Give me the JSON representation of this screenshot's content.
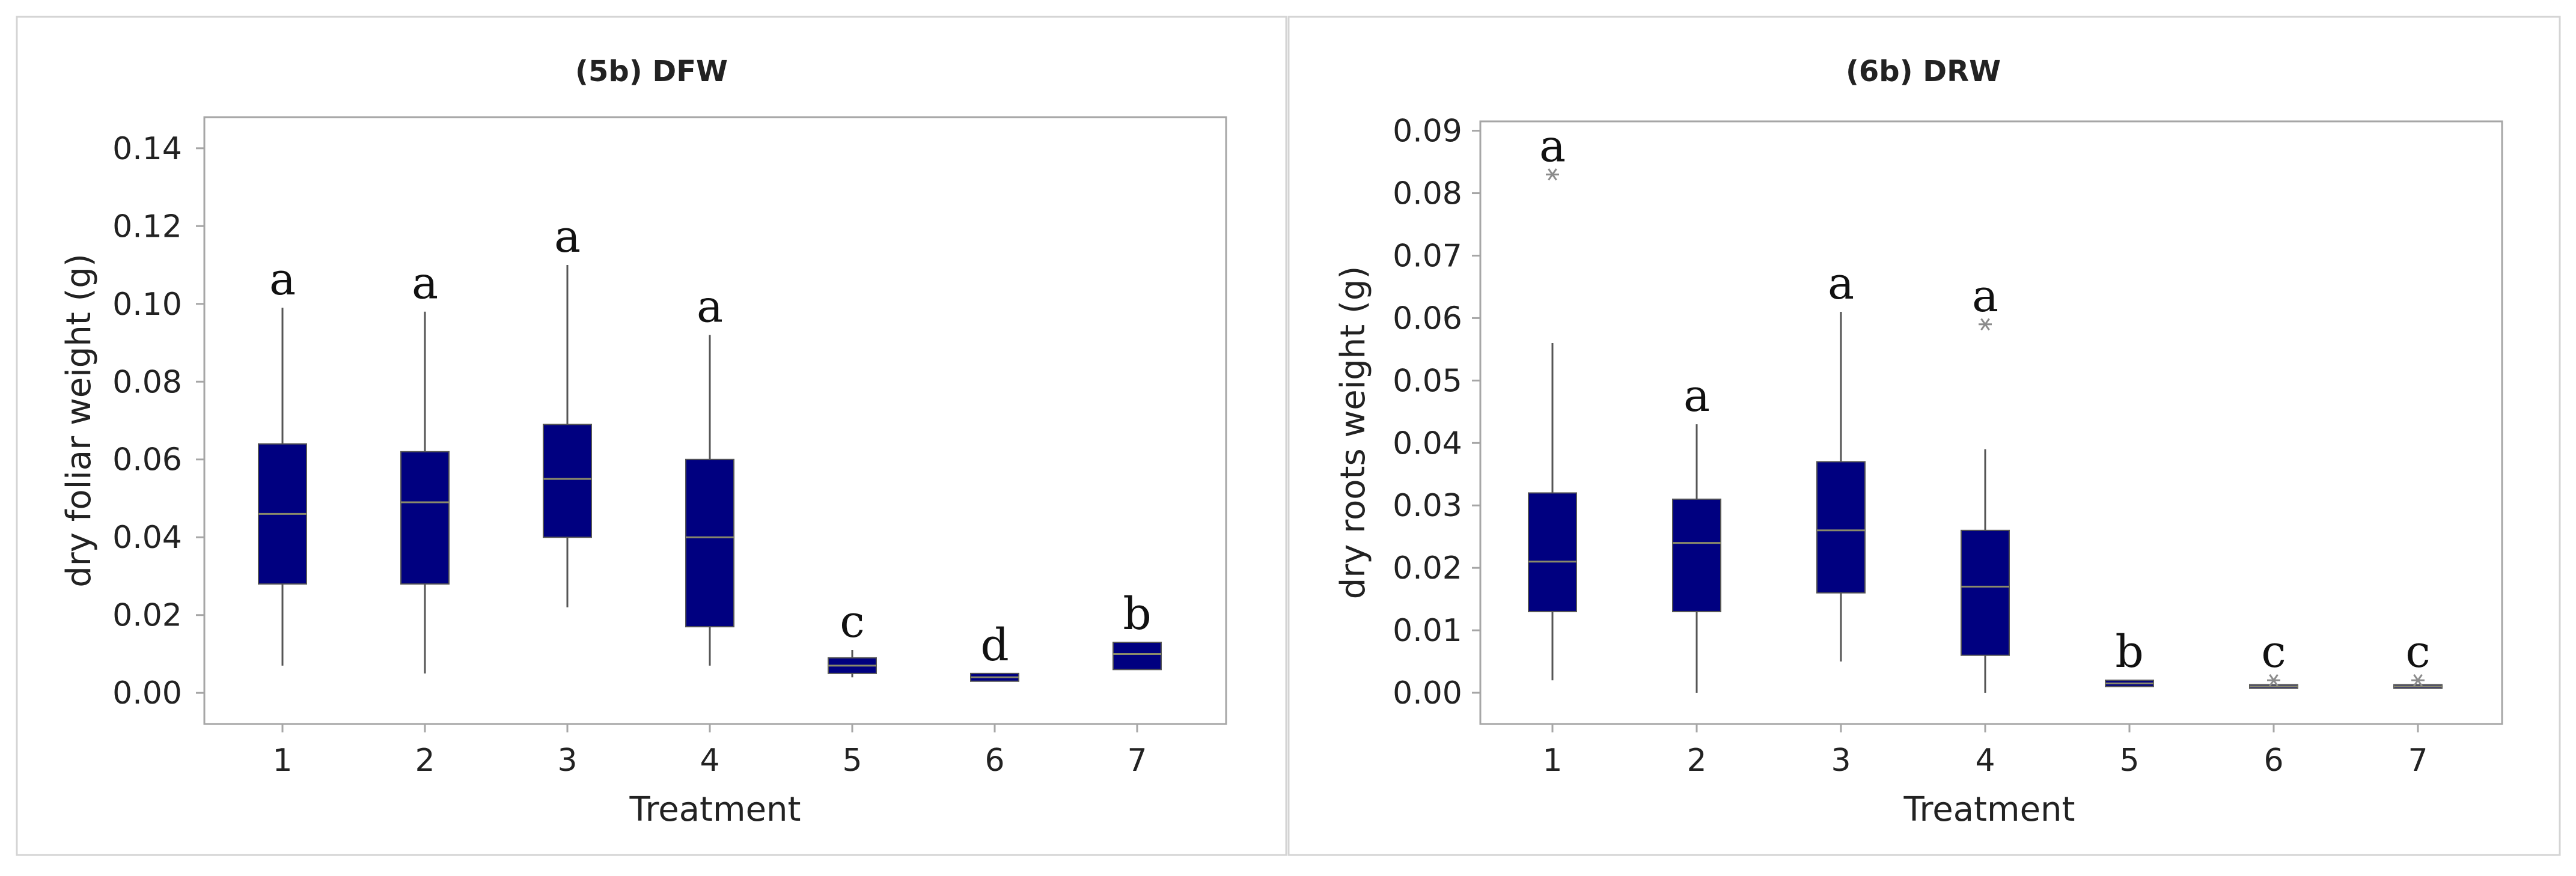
{
  "colors": {
    "box_fill": "#000080",
    "median": "#8a8a6a",
    "whisker": "#555555",
    "outlier": "#8c8c8c",
    "frame": "#a6a6a6",
    "panel_border": "#d4d4d4"
  },
  "chart_data": [
    {
      "type": "boxplot",
      "title": "(5b) DFW",
      "xlabel": "Treatment",
      "ylabel": "dry foliar weight (g)",
      "categories": [
        "1",
        "2",
        "3",
        "4",
        "5",
        "6",
        "7"
      ],
      "ylim": [
        -0.008,
        0.148
      ],
      "yticks": [
        0,
        0.02,
        0.04,
        0.06,
        0.08,
        0.1,
        0.12,
        0.14
      ],
      "yticklabels": [
        "0.00",
        "0.02",
        "0.04",
        "0.06",
        "0.08",
        "0.10",
        "0.12",
        "0.14"
      ],
      "grid": false,
      "boxes": [
        {
          "category": "1",
          "min": 0.007,
          "q1": 0.028,
          "median": 0.046,
          "q3": 0.064,
          "max": 0.099,
          "outliers": [],
          "letter": "a"
        },
        {
          "category": "2",
          "min": 0.005,
          "q1": 0.028,
          "median": 0.049,
          "q3": 0.062,
          "max": 0.098,
          "outliers": [],
          "letter": "a"
        },
        {
          "category": "3",
          "min": 0.022,
          "q1": 0.04,
          "median": 0.055,
          "q3": 0.069,
          "max": 0.11,
          "outliers": [],
          "letter": "a"
        },
        {
          "category": "4",
          "min": 0.007,
          "q1": 0.017,
          "median": 0.04,
          "q3": 0.06,
          "max": 0.092,
          "outliers": [],
          "letter": "a"
        },
        {
          "category": "5",
          "min": 0.004,
          "q1": 0.005,
          "median": 0.007,
          "q3": 0.009,
          "max": 0.011,
          "outliers": [],
          "letter": "c"
        },
        {
          "category": "6",
          "min": 0.003,
          "q1": 0.003,
          "median": 0.004,
          "q3": 0.005,
          "max": 0.005,
          "outliers": [],
          "letter": "d"
        },
        {
          "category": "7",
          "min": 0.006,
          "q1": 0.006,
          "median": 0.01,
          "q3": 0.013,
          "max": 0.013,
          "outliers": [],
          "letter": "b"
        }
      ]
    },
    {
      "type": "boxplot",
      "title": "(6b) DRW",
      "xlabel": "Treatment",
      "ylabel": "dry roots weight (g)",
      "categories": [
        "1",
        "2",
        "3",
        "4",
        "5",
        "6",
        "7"
      ],
      "ylim": [
        -0.005,
        0.0915
      ],
      "yticks": [
        0,
        0.01,
        0.02,
        0.03,
        0.04,
        0.05,
        0.06,
        0.07,
        0.08,
        0.09
      ],
      "yticklabels": [
        "0.00",
        "0.01",
        "0.02",
        "0.03",
        "0.04",
        "0.05",
        "0.06",
        "0.07",
        "0.08",
        "0.09"
      ],
      "grid": false,
      "boxes": [
        {
          "category": "1",
          "min": 0.002,
          "q1": 0.013,
          "median": 0.021,
          "q3": 0.032,
          "max": 0.056,
          "outliers": [
            0.083
          ],
          "letter": "a"
        },
        {
          "category": "2",
          "min": 0.0,
          "q1": 0.013,
          "median": 0.024,
          "q3": 0.031,
          "max": 0.043,
          "outliers": [],
          "letter": "a"
        },
        {
          "category": "3",
          "min": 0.005,
          "q1": 0.016,
          "median": 0.026,
          "q3": 0.037,
          "max": 0.061,
          "outliers": [],
          "letter": "a"
        },
        {
          "category": "4",
          "min": 0.0,
          "q1": 0.006,
          "median": 0.017,
          "q3": 0.026,
          "max": 0.039,
          "outliers": [
            0.059
          ],
          "letter": "a"
        },
        {
          "category": "5",
          "min": 0.001,
          "q1": 0.001,
          "median": 0.0015,
          "q3": 0.002,
          "max": 0.002,
          "outliers": [],
          "letter": "b"
        },
        {
          "category": "6",
          "min": 0.001,
          "q1": 0.001,
          "median": 0.001,
          "q3": 0.001,
          "max": 0.001,
          "outliers": [
            0.002
          ],
          "letter": "c"
        },
        {
          "category": "7",
          "min": 0.001,
          "q1": 0.001,
          "median": 0.001,
          "q3": 0.001,
          "max": 0.001,
          "outliers": [
            0.002
          ],
          "letter": "c"
        }
      ]
    }
  ]
}
